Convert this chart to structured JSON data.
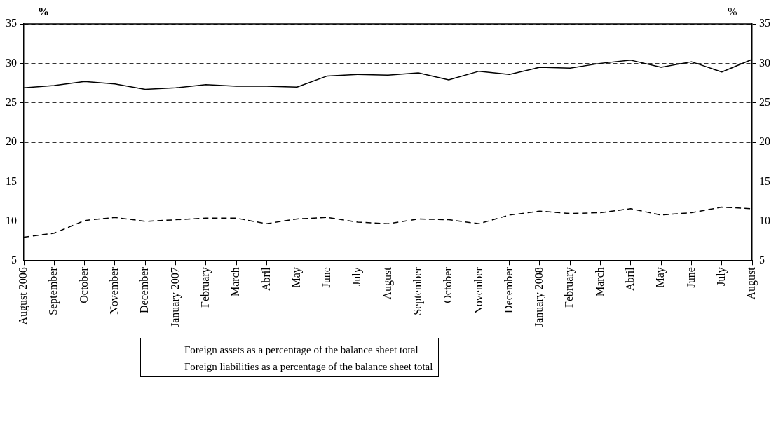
{
  "chart_data": {
    "type": "line",
    "ylabel": "%",
    "y2label": "%",
    "categories": [
      "August 2006",
      "September",
      "October",
      "November",
      "December",
      "January 2007",
      "February",
      "March",
      "Abril",
      "May",
      "June",
      "July",
      "August",
      "September",
      "October",
      "November",
      "December",
      "January 2008",
      "February",
      "March",
      "Abril",
      "May",
      "June",
      "July",
      "August"
    ],
    "series": [
      {
        "name": "Foreign assets as a percentage of the balance sheet total",
        "color": "#000000",
        "line_style": "dashed",
        "values": [
          8.0,
          8.5,
          10.1,
          10.5,
          10.0,
          10.2,
          10.4,
          10.4,
          9.7,
          10.3,
          10.5,
          9.9,
          9.7,
          10.3,
          10.2,
          9.7,
          10.8,
          11.3,
          11.0,
          11.1,
          11.6,
          10.8,
          11.1,
          11.8,
          11.6
        ]
      },
      {
        "name": "Foreign liabilities as a percentage of the balance sheet total",
        "color": "#000000",
        "line_style": "solid",
        "values": [
          26.9,
          27.2,
          27.7,
          27.4,
          26.7,
          26.9,
          27.3,
          27.1,
          27.1,
          27.0,
          28.4,
          28.6,
          28.5,
          28.8,
          27.9,
          29.0,
          28.6,
          29.5,
          29.4,
          30.0,
          30.4,
          29.5,
          30.2,
          28.9,
          30.5
        ]
      }
    ],
    "ylim": [
      5,
      35
    ],
    "yticks": [
      5,
      10,
      15,
      20,
      25,
      30,
      35
    ],
    "y2lim": [
      5,
      35
    ],
    "y2ticks": [
      5,
      10,
      15,
      20,
      25,
      30,
      35
    ],
    "grid": "y",
    "legend": "bottom",
    "marker": "none"
  }
}
